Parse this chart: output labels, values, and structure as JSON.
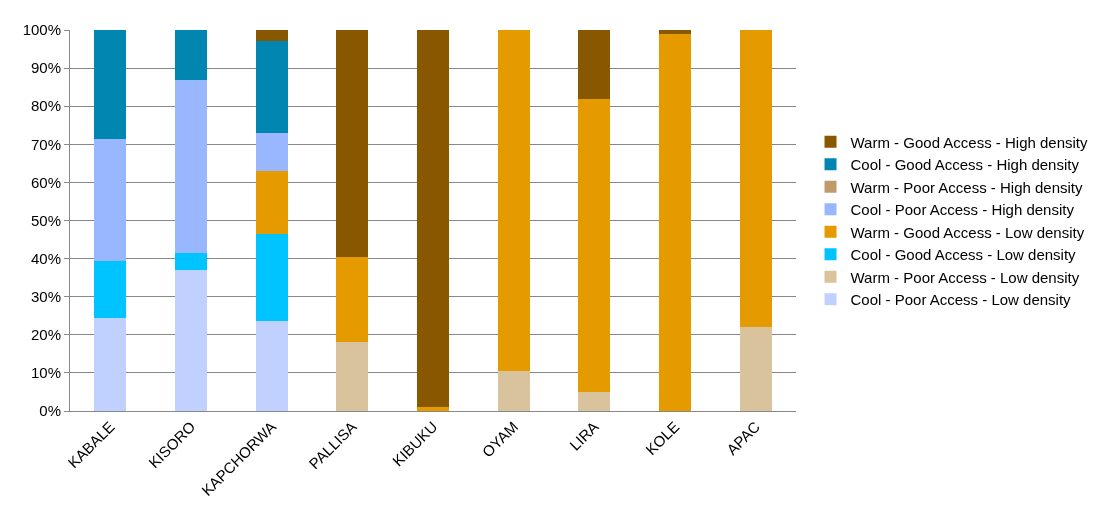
{
  "chart_data": {
    "type": "bar",
    "stacked": true,
    "categories": [
      "KABALE",
      "KISORO",
      "KAPCHORWA",
      "PALLISA",
      "KIBUKU",
      "OYAM",
      "LIRA",
      "KOLE",
      "APAC"
    ],
    "series": [
      {
        "name": "Cool - Poor Access - Low density",
        "color": "#c0d1ff",
        "values": [
          24.5,
          37,
          23.5,
          0,
          0,
          0,
          0,
          0,
          0
        ]
      },
      {
        "name": "Warm - Poor Access - Low density",
        "color": "#d8c39d",
        "values": [
          0,
          0,
          0,
          18,
          0,
          10.5,
          5,
          0,
          22
        ]
      },
      {
        "name": "Cool - Good Access - Low density",
        "color": "#00c4ff",
        "values": [
          15,
          4.5,
          23,
          0,
          0,
          0,
          0,
          0,
          0
        ]
      },
      {
        "name": "Warm - Good Access - Low density",
        "color": "#e59a00",
        "values": [
          0,
          0,
          16.5,
          22.5,
          1,
          89.5,
          77,
          99,
          78
        ]
      },
      {
        "name": "Cool - Poor Access - High density",
        "color": "#98b7ff",
        "values": [
          32,
          45.5,
          10,
          0,
          0,
          0,
          0,
          0,
          0
        ]
      },
      {
        "name": "Warm - Poor Access - High density",
        "color": "#c19a6b",
        "values": [
          0,
          0,
          0,
          0,
          0,
          0,
          0,
          0,
          0
        ]
      },
      {
        "name": "Cool - Good Access - High density",
        "color": "#0086b0",
        "values": [
          28.5,
          13,
          24,
          0,
          0,
          0,
          0,
          0,
          0
        ]
      },
      {
        "name": "Warm - Good Access - High density",
        "color": "#875800",
        "values": [
          0,
          0,
          3,
          59.5,
          99,
          0,
          18,
          1,
          0
        ]
      }
    ],
    "ylim": [
      0,
      100
    ],
    "yticks": [
      {
        "value": 0,
        "label": "0%"
      },
      {
        "value": 10,
        "label": "10%"
      },
      {
        "value": 20,
        "label": "20%"
      },
      {
        "value": 30,
        "label": "30%"
      },
      {
        "value": 40,
        "label": "40%"
      },
      {
        "value": 50,
        "label": "50%"
      },
      {
        "value": 60,
        "label": "60%"
      },
      {
        "value": 70,
        "label": "70%"
      },
      {
        "value": 80,
        "label": "80%"
      },
      {
        "value": 90,
        "label": "90%"
      },
      {
        "value": 100,
        "label": "100%"
      }
    ],
    "grid": "y",
    "legend": "right"
  }
}
